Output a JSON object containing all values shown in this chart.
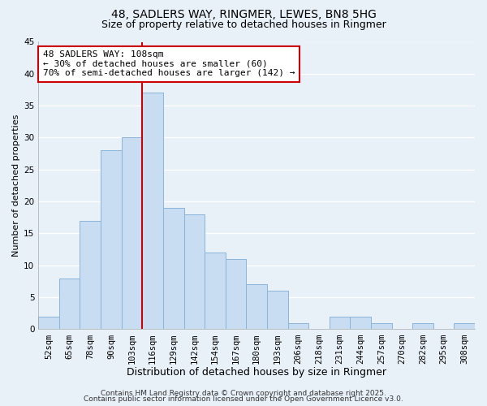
{
  "title": "48, SADLERS WAY, RINGMER, LEWES, BN8 5HG",
  "subtitle": "Size of property relative to detached houses in Ringmer",
  "xlabel": "Distribution of detached houses by size in Ringmer",
  "ylabel": "Number of detached properties",
  "bar_labels": [
    "52sqm",
    "65sqm",
    "78sqm",
    "90sqm",
    "103sqm",
    "116sqm",
    "129sqm",
    "142sqm",
    "154sqm",
    "167sqm",
    "180sqm",
    "193sqm",
    "206sqm",
    "218sqm",
    "231sqm",
    "244sqm",
    "257sqm",
    "270sqm",
    "282sqm",
    "295sqm",
    "308sqm"
  ],
  "bar_values": [
    2,
    8,
    17,
    28,
    30,
    37,
    19,
    18,
    12,
    11,
    7,
    6,
    1,
    0,
    2,
    2,
    1,
    0,
    1,
    0,
    1
  ],
  "bar_color": "#c9ddf2",
  "bar_edge_color": "#8ab4d9",
  "bg_color": "#e8f0f8",
  "grid_color": "#ffffff",
  "vline_color": "#cc0000",
  "vline_x_index": 5,
  "annotation_title": "48 SADLERS WAY: 108sqm",
  "annotation_line1": "← 30% of detached houses are smaller (60)",
  "annotation_line2": "70% of semi-detached houses are larger (142) →",
  "annotation_box_color": "#ffffff",
  "annotation_box_edge": "#cc0000",
  "footnote1": "Contains HM Land Registry data © Crown copyright and database right 2025.",
  "footnote2": "Contains public sector information licensed under the Open Government Licence v3.0.",
  "ylim": [
    0,
    45
  ],
  "title_fontsize": 10,
  "subtitle_fontsize": 9,
  "xlabel_fontsize": 9,
  "ylabel_fontsize": 8,
  "tick_fontsize": 7.5,
  "annotation_fontsize": 8,
  "footnote_fontsize": 6.5
}
